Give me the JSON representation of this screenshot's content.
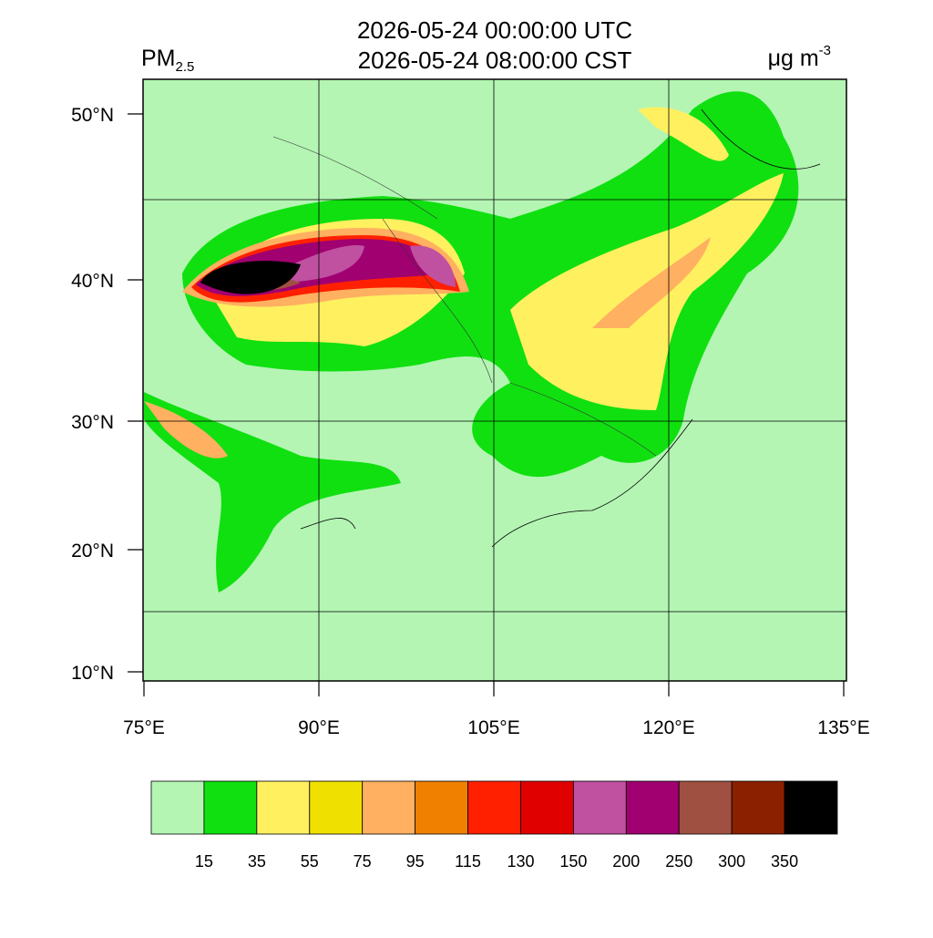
{
  "header": {
    "variable": "PM",
    "variable_subscript": "2.5",
    "title_lines": [
      "2026-05-24 00:00:00 UTC",
      "2026-05-24 08:00:00 CST"
    ],
    "unit": "μg m",
    "unit_superscript": "-3"
  },
  "map": {
    "lat_labels": [
      "50°N",
      "40°N",
      "30°N",
      "20°N",
      "10°N"
    ],
    "lon_labels": [
      "75°E",
      "90°E",
      "105°E",
      "120°E",
      "135°E"
    ]
  },
  "colorbar": {
    "colors": [
      "#b4f5b4",
      "#10e010",
      "#fff060",
      "#f0e000",
      "#ffb060",
      "#f08000",
      "#ff2000",
      "#e00000",
      "#c050a0",
      "#a00070",
      "#a05040",
      "#8a2000",
      "#000000"
    ],
    "labels": [
      15,
      35,
      55,
      75,
      95,
      115,
      130,
      150,
      200,
      250,
      300,
      350
    ]
  }
}
